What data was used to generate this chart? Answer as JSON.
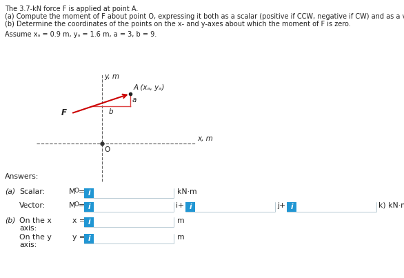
{
  "title_lines": [
    "The 3.7-kN force F is applied at point A.",
    "(a) Compute the moment of F about point O, expressing it both as a scalar (positive if CCW, negative if CW) and as a vector quantity.",
    "(b) Determine the coordinates of the points on the x- and y-axes about which the moment of F is zero."
  ],
  "assume_line": "Assume xₐ = 0.9 m, yₐ = 1.6 m, a = 3, b = 9.",
  "diagram": {
    "F_label": "F",
    "A_label": "A (xₐ, yₐ)",
    "O_label": "O",
    "a_label": "a",
    "b_label": "b",
    "x_axis_label": "x, m",
    "y_axis_label": "y, m",
    "arrow_color": "#cc0000",
    "triangle_color": "#dd4444",
    "dashed_color": "#666666"
  },
  "answers_title": "Answers:",
  "box_color": "#2196d3",
  "box_icon": "i",
  "background_color": "#ffffff",
  "text_color": "#222222",
  "font_size_title": 7.0,
  "font_size_body": 7.8,
  "font_size_diagram": 7.5
}
